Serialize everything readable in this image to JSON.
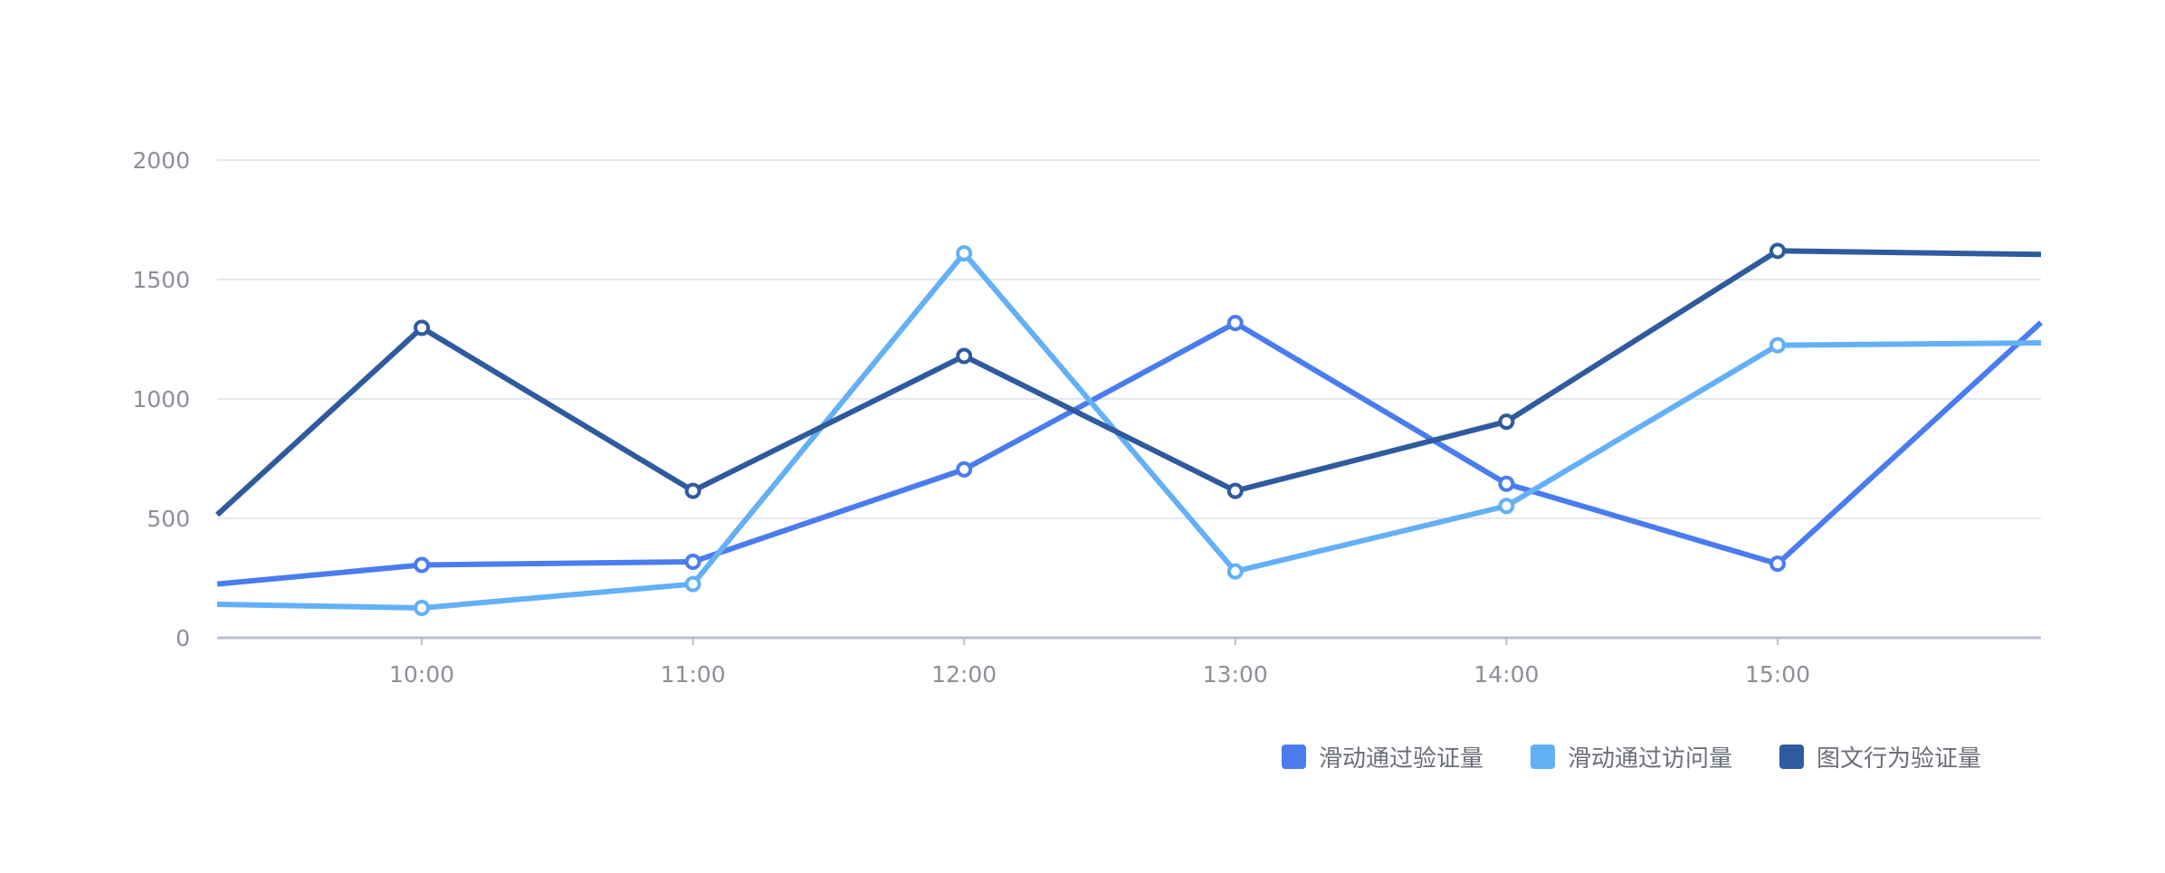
{
  "chart_data": {
    "type": "line",
    "title": "",
    "xlabel": "",
    "ylabel": "",
    "ylim": [
      0,
      2000
    ],
    "y_ticks": [
      "0",
      "500",
      "1000",
      "1500",
      "2000"
    ],
    "categories": [
      "10:00",
      "11:00",
      "12:00",
      "13:00",
      "14:00",
      "15:00"
    ],
    "grid": true,
    "legend_position": "bottom-right",
    "series": [
      {
        "name": "滑动通过验证量",
        "color": "#4A7CF0",
        "left_edge_value": 225,
        "values": [
          305,
          318,
          705,
          1318,
          645,
          310
        ],
        "right_edge_value": 1320
      },
      {
        "name": "滑动通过访问量",
        "color": "#63B0F7",
        "left_edge_value": 140,
        "values": [
          125,
          225,
          1610,
          278,
          552,
          1225
        ],
        "right_edge_value": 1235
      },
      {
        "name": "图文行为验证量",
        "color": "#2F5B9E",
        "left_edge_value": 515,
        "values": [
          1298,
          615,
          1180,
          615,
          905,
          1620
        ],
        "right_edge_value": 1605
      }
    ]
  }
}
